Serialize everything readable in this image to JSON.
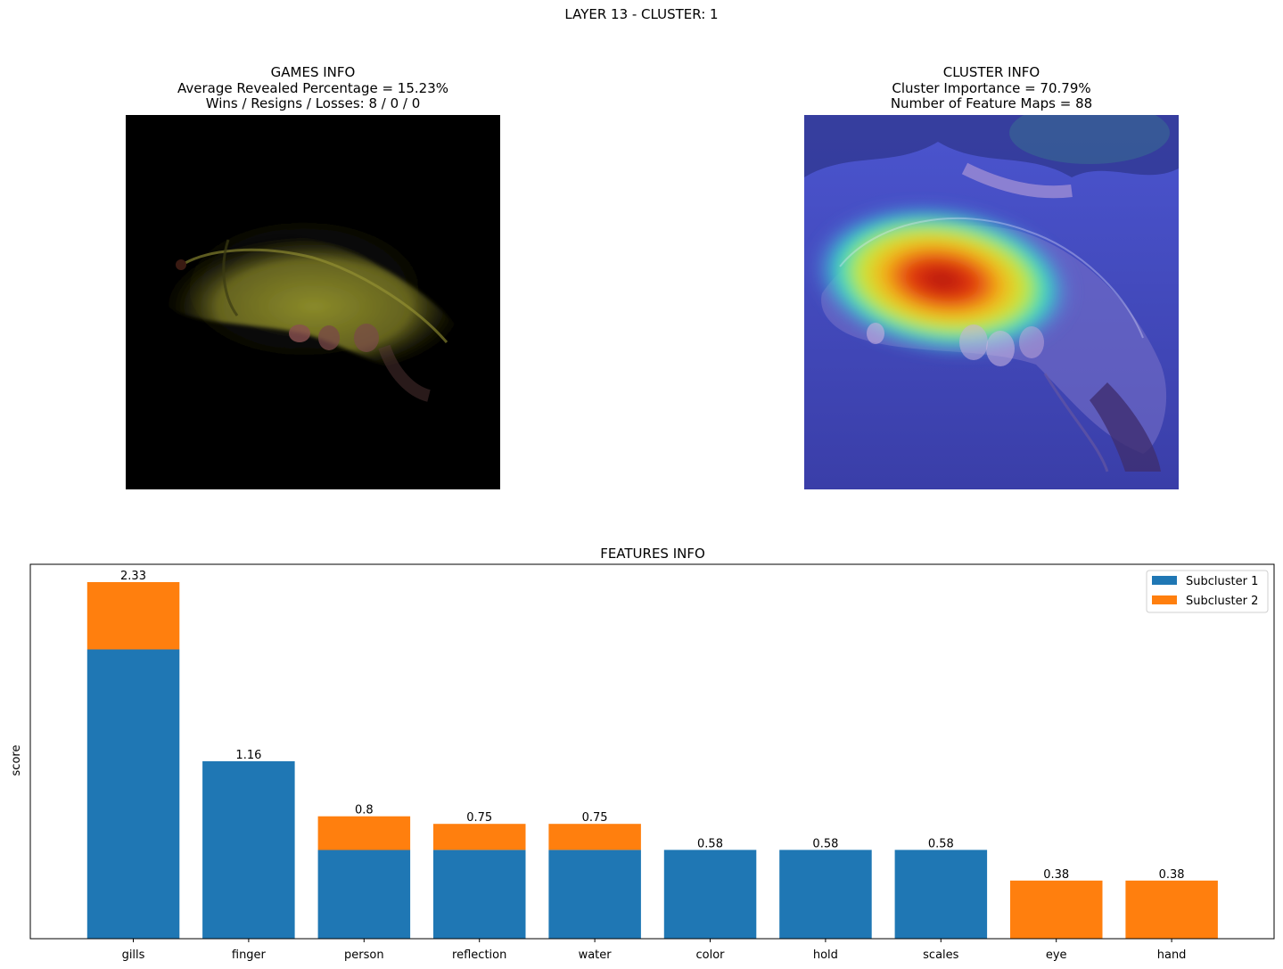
{
  "suptitle": "LAYER 13 - CLUSTER: 1",
  "games_info": {
    "line1": "GAMES INFO",
    "line2": "Average Revealed Percentage = 15.23%",
    "line3": "Wins / Resigns / Losses: 8 / 0 / 0"
  },
  "cluster_info": {
    "line1": "CLUSTER INFO",
    "line2": "Cluster Importance = 70.79%",
    "line3": "Number of Feature Maps = 88"
  },
  "colors": {
    "subcluster_1": "#1f77b4",
    "subcluster_2": "#ff7f0e"
  },
  "chart_data": {
    "type": "bar",
    "stacked": true,
    "title": "FEATURES INFO",
    "xlabel": "",
    "ylabel": "score",
    "categories": [
      "gills",
      "finger",
      "person",
      "reflection",
      "water",
      "color",
      "hold",
      "scales",
      "eye",
      "hand"
    ],
    "series": [
      {
        "name": "Subcluster 1",
        "values": [
          1.89,
          1.16,
          0.58,
          0.58,
          0.58,
          0.58,
          0.58,
          0.58,
          0,
          0
        ]
      },
      {
        "name": "Subcluster 2",
        "values": [
          0.44,
          0,
          0.22,
          0.17,
          0.17,
          0,
          0,
          0,
          0.38,
          0.38
        ]
      }
    ],
    "totals": [
      "2.33",
      "1.16",
      "0.8",
      "0.75",
      "0.75",
      "0.58",
      "0.58",
      "0.58",
      "0.38",
      "0.38"
    ],
    "ylim": [
      0,
      2.33
    ],
    "grid": false,
    "yticks_visible": false,
    "legend_position": "top-right"
  }
}
